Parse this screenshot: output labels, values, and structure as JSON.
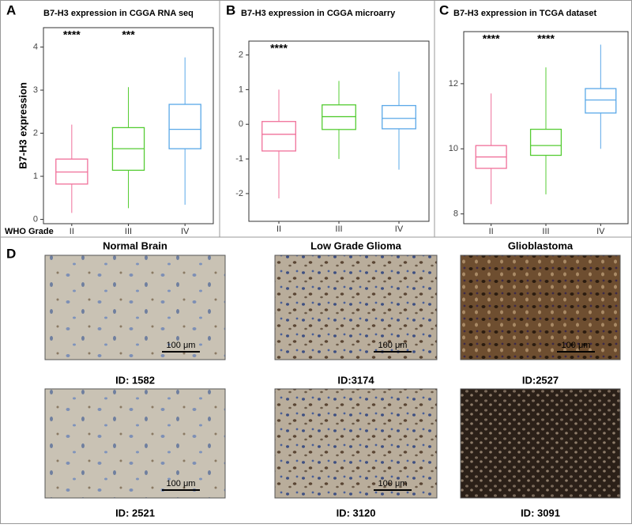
{
  "chart_data": [
    {
      "type": "box",
      "panel": "A",
      "title": "B7-H3 expression in CGGA RNA seq",
      "y_label": "B7-H3 expression",
      "x_label": "WHO Grade",
      "categories": [
        "II",
        "III",
        "IV"
      ],
      "colors": [
        "#f0709a",
        "#55cc33",
        "#5aa8e8"
      ],
      "whisker_low": [
        0.15,
        0.26,
        0.34
      ],
      "q1": [
        0.82,
        1.14,
        1.64
      ],
      "median": [
        1.1,
        1.64,
        2.09
      ],
      "q3": [
        1.4,
        2.13,
        2.67
      ],
      "whisker_high": [
        2.2,
        3.07,
        3.76
      ],
      "annotations": [
        "****",
        "***",
        null
      ],
      "ylim": [
        -0.1,
        4.45
      ],
      "yticks": [
        0,
        1,
        2,
        3,
        4
      ]
    },
    {
      "type": "box",
      "panel": "B",
      "title": "B7-H3  expression in CGGA microarry",
      "categories": [
        "II",
        "III",
        "IV"
      ],
      "colors": [
        "#f0709a",
        "#55cc33",
        "#5aa8e8"
      ],
      "whisker_low": [
        -2.14,
        -1.0,
        -1.31
      ],
      "q1": [
        -0.77,
        -0.15,
        -0.13
      ],
      "median": [
        -0.29,
        0.22,
        0.17
      ],
      "q3": [
        0.08,
        0.56,
        0.54
      ],
      "whisker_high": [
        1.0,
        1.25,
        1.52
      ],
      "annotations": [
        "****",
        null,
        null
      ],
      "ylim": [
        -2.8,
        2.4
      ],
      "yticks": [
        -2,
        -1,
        0,
        1,
        2
      ]
    },
    {
      "type": "box",
      "panel": "C",
      "title": "B7-H3 expression in TCGA dataset",
      "categories": [
        "II",
        "III",
        "IV"
      ],
      "colors": [
        "#f0709a",
        "#55cc33",
        "#5aa8e8"
      ],
      "whisker_low": [
        8.3,
        8.6,
        10.0
      ],
      "q1": [
        9.4,
        9.8,
        11.1
      ],
      "median": [
        9.75,
        10.1,
        11.5
      ],
      "q3": [
        10.1,
        10.6,
        11.85
      ],
      "whisker_high": [
        11.7,
        12.5,
        13.2
      ],
      "annotations": [
        "****",
        "****",
        null
      ],
      "ylim": [
        7.7,
        13.6
      ],
      "yticks": [
        8,
        10,
        12
      ]
    }
  ],
  "panel_d": {
    "label": "D",
    "columns": [
      {
        "title": "Normal Brain",
        "images": [
          {
            "id": "ID: 1582",
            "scale_bar": "100 μm"
          },
          {
            "id": "ID: 2521",
            "scale_bar": "100 μm"
          }
        ]
      },
      {
        "title": "Low Grade Glioma",
        "images": [
          {
            "id": "ID:3174",
            "scale_bar": "100 μm"
          },
          {
            "id": "ID: 3120",
            "scale_bar": "100 μm"
          }
        ]
      },
      {
        "title": "Glioblastoma",
        "images": [
          {
            "id": "ID:2527",
            "scale_bar": "100 μm"
          },
          {
            "id": "ID: 3091"
          }
        ]
      }
    ]
  }
}
